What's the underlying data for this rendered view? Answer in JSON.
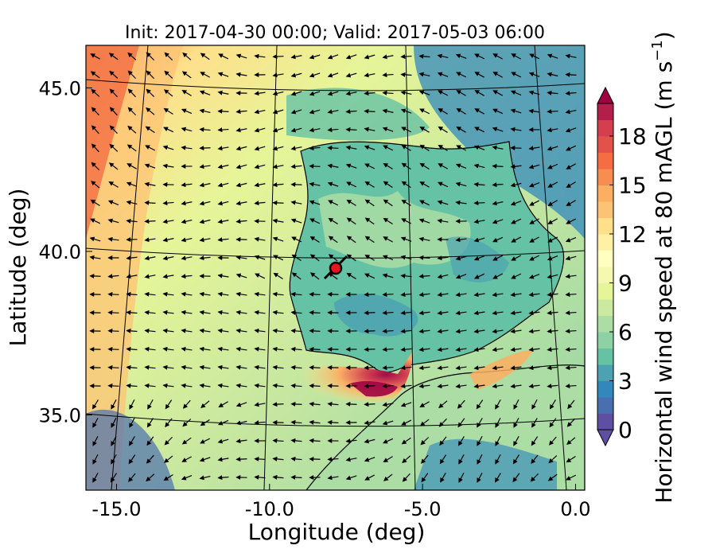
{
  "title": "Init: 2017-04-30 00:00; Valid: 2017-05-03 06:00",
  "xlabel": "Longitude (deg)",
  "ylabel": "Latitude (deg)",
  "colorbar_label": "Horizontal wind speed at 80 mAGL (m s",
  "colorbar_unit_exp": "−1",
  "colorbar_label_close": ")",
  "x_ticks": [
    {
      "value": -15.0,
      "label": "-15.0"
    },
    {
      "value": -10.0,
      "label": "-10.0"
    },
    {
      "value": -5.0,
      "label": "-5.0"
    },
    {
      "value": 0.0,
      "label": "0.0"
    }
  ],
  "y_ticks": [
    {
      "value": 45.0,
      "label": "45.0"
    },
    {
      "value": 40.0,
      "label": "40.0"
    },
    {
      "value": 35.0,
      "label": "35.0"
    }
  ],
  "colorbar_ticks": [
    {
      "value": 0,
      "label": "0"
    },
    {
      "value": 3,
      "label": "3"
    },
    {
      "value": 6,
      "label": "6"
    },
    {
      "value": 9,
      "label": "9"
    },
    {
      "value": 12,
      "label": "12"
    },
    {
      "value": 15,
      "label": "15"
    },
    {
      "value": 18,
      "label": "18"
    }
  ],
  "colorbar_range": [
    0,
    20
  ],
  "colorbar_colors": [
    "#5e4fa2",
    "#4a6fb0",
    "#3288bd",
    "#4da2b1",
    "#66c2a5",
    "#8ed1a4",
    "#abdda4",
    "#cbe99f",
    "#e6f598",
    "#f5f9b0",
    "#ffffbf",
    "#fff0a6",
    "#fee08b",
    "#fdc374",
    "#fdae61",
    "#f88d52",
    "#f46d43",
    "#e2514a",
    "#d53e4f",
    "#b41e4b",
    "#9e0142"
  ],
  "x_range": [
    -16,
    0.3
  ],
  "y_range": [
    32.7,
    46.3
  ],
  "site_marker": {
    "lon": -7.6,
    "lat": 39.3,
    "color": "#e8171d"
  }
}
